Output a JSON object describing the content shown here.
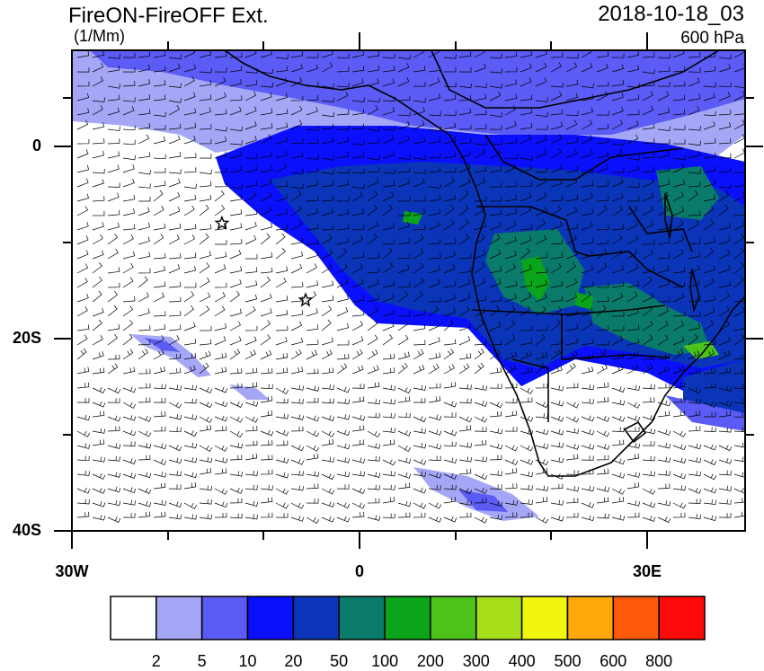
{
  "map": {
    "title": "FireON-FireOFF Ext.",
    "units": "(1/Mm)",
    "datetime": "2018-10-18_03",
    "level": "600 hPa",
    "lat_labels": [
      {
        "text": "0",
        "lat": 0
      },
      {
        "text": "20S",
        "lat": -20
      },
      {
        "text": "40S",
        "lat": -40
      }
    ],
    "lon_labels": [
      {
        "text": "30W",
        "lon": -30
      },
      {
        "text": "0",
        "lon": 0
      },
      {
        "text": "30E",
        "lon": 30
      }
    ],
    "extent": {
      "lon_min": -30,
      "lon_max": 40,
      "lat_min": -40,
      "lat_max": 10
    },
    "markers": [
      {
        "name": "star",
        "lon": -14.4,
        "lat": -8.0
      },
      {
        "name": "star",
        "lon": -5.7,
        "lat": -16.0
      }
    ],
    "wind_field": "wind-barbs"
  },
  "colorbar": {
    "colors": [
      "#ffffff",
      "#a6a6f7",
      "#5b5bf5",
      "#0a10fb",
      "#0a35b8",
      "#0a7a6a",
      "#0aa51a",
      "#4cc21a",
      "#a6de1a",
      "#f1f50f",
      "#ffa80a",
      "#ff5a0a",
      "#ff0a0a"
    ],
    "labels": [
      "2",
      "5",
      "10",
      "20",
      "50",
      "100",
      "200",
      "300",
      "400",
      "500",
      "600",
      "800"
    ]
  }
}
